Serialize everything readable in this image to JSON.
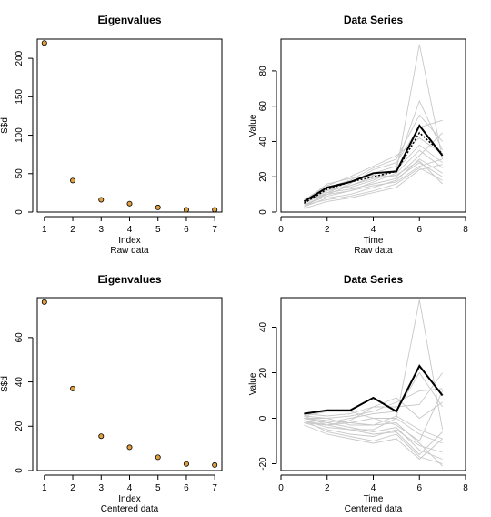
{
  "chart_data": [
    {
      "type": "scatter",
      "title": "Eigenvalues",
      "xlabel": "Index",
      "subtitle": "Raw data",
      "ylabel": "S$d",
      "xlim": [
        0.75,
        7.25
      ],
      "ylim": [
        0,
        225
      ],
      "xticks": [
        1,
        2,
        3,
        4,
        5,
        6,
        7
      ],
      "yticks": [
        0,
        50,
        100,
        150,
        200
      ],
      "x": [
        1,
        2,
        3,
        4,
        5,
        6,
        7
      ],
      "y": [
        220,
        41,
        16,
        11,
        6,
        3,
        3
      ],
      "point_fill": "#e0a040"
    },
    {
      "type": "line",
      "title": "Data Series",
      "xlabel": "Time",
      "subtitle": "Raw data",
      "ylabel": "Value",
      "xlim": [
        0,
        8
      ],
      "ylim": [
        0,
        98
      ],
      "xticks": [
        0,
        2,
        4,
        6,
        8
      ],
      "yticks": [
        0,
        20,
        40,
        60,
        80
      ],
      "x": [
        1,
        2,
        3,
        4,
        5,
        6,
        7
      ],
      "background_series": [
        [
          4,
          10,
          15,
          20,
          23,
          95,
          30
        ],
        [
          5,
          12,
          17,
          22,
          26,
          63,
          35
        ],
        [
          6,
          14,
          18,
          25,
          30,
          55,
          40
        ],
        [
          3,
          11,
          16,
          24,
          28,
          48,
          52
        ],
        [
          7,
          15,
          20,
          26,
          32,
          42,
          33
        ],
        [
          5,
          13,
          14,
          18,
          24,
          38,
          28
        ],
        [
          4,
          9,
          12,
          17,
          22,
          35,
          25
        ],
        [
          6,
          16,
          19,
          21,
          20,
          32,
          45
        ],
        [
          3,
          8,
          10,
          14,
          18,
          30,
          22
        ],
        [
          5,
          11,
          13,
          16,
          19,
          28,
          20
        ],
        [
          4,
          7,
          9,
          12,
          16,
          25,
          18
        ],
        [
          6,
          10,
          12,
          15,
          17,
          26,
          30
        ],
        [
          2,
          6,
          8,
          11,
          14,
          24,
          27
        ],
        [
          5,
          12,
          15,
          19,
          21,
          29,
          16
        ]
      ],
      "mean_series": [
        6,
        14,
        17,
        22,
        23,
        49,
        32
      ],
      "dotted_series": [
        5,
        13,
        17,
        20,
        23,
        45,
        33
      ],
      "line_color": "#c8c8c8"
    },
    {
      "type": "scatter",
      "title": "Eigenvalues",
      "xlabel": "Index",
      "subtitle": "Centered data",
      "ylabel": "S$d",
      "xlim": [
        0.75,
        7.25
      ],
      "ylim": [
        0,
        78
      ],
      "xticks": [
        1,
        2,
        3,
        4,
        5,
        6,
        7
      ],
      "yticks": [
        0,
        20,
        40,
        60
      ],
      "x": [
        1,
        2,
        3,
        4,
        5,
        6,
        7
      ],
      "y": [
        76,
        37,
        15.5,
        10.5,
        6,
        3,
        2.5
      ],
      "point_fill": "#e0a040"
    },
    {
      "type": "line",
      "title": "Data Series",
      "xlabel": "Time",
      "subtitle": "Centered data",
      "ylabel": "Value",
      "xlim": [
        0,
        8
      ],
      "ylim": [
        -23,
        53
      ],
      "xticks": [
        0,
        2,
        4,
        6,
        8
      ],
      "yticks": [
        -20,
        0,
        20,
        40
      ],
      "x": [
        1,
        2,
        3,
        4,
        5,
        6,
        7
      ],
      "background_series": [
        [
          -1,
          -3,
          -2,
          0,
          0,
          52,
          -5
        ],
        [
          0,
          -2,
          0,
          2,
          3,
          20,
          5
        ],
        [
          1,
          0,
          1,
          3,
          7,
          12,
          13
        ],
        [
          -2,
          -3,
          -1,
          5,
          5,
          6,
          20
        ],
        [
          2,
          1,
          2,
          5,
          9,
          0,
          7
        ],
        [
          0,
          0,
          -3,
          -3,
          1,
          -5,
          -9
        ],
        [
          -1,
          -4,
          -5,
          -5,
          0,
          -7,
          -11
        ],
        [
          1,
          3,
          3,
          0,
          -3,
          -10,
          12
        ],
        [
          -2,
          -5,
          -7,
          -8,
          -5,
          -12,
          -15
        ],
        [
          0,
          -2,
          -4,
          -6,
          -4,
          -14,
          -18
        ],
        [
          -1,
          -6,
          -8,
          -10,
          -7,
          -17,
          -20
        ],
        [
          1,
          -3,
          -5,
          -7,
          -6,
          -16,
          -6
        ],
        [
          -3,
          -7,
          -9,
          -11,
          -9,
          -18,
          -9
        ],
        [
          0,
          -1,
          -2,
          -3,
          -2,
          -11,
          -21
        ]
      ],
      "mean_series": [
        2,
        3.5,
        3.5,
        9,
        3,
        23,
        10
      ],
      "line_color": "#c8c8c8"
    }
  ]
}
